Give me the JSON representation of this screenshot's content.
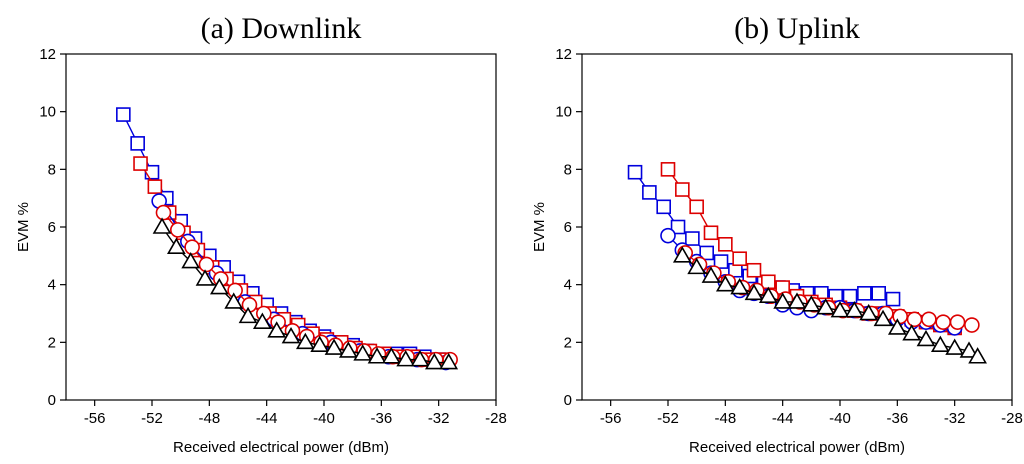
{
  "chart_data": [
    {
      "type": "line",
      "title": "(a) Downlink",
      "xlabel": "Received electrical power (dBm)",
      "ylabel": "EVM %",
      "xlim": [
        -58,
        -28
      ],
      "ylim": [
        0,
        12
      ],
      "xticks": [
        -56,
        -52,
        -48,
        -44,
        -40,
        -36,
        -32,
        -28
      ],
      "yticks": [
        0,
        2,
        4,
        6,
        8,
        10,
        12
      ],
      "grid": false,
      "series": [
        {
          "color": "#0000dd",
          "marker": "square",
          "x": [
            -54,
            -53,
            -52,
            -51,
            -50,
            -49,
            -48,
            -47,
            -46,
            -45,
            -44,
            -43,
            -42,
            -41,
            -40,
            -39,
            -38,
            -37,
            -36,
            -35,
            -34,
            -33,
            -32
          ],
          "y": [
            9.9,
            8.9,
            7.9,
            7.0,
            6.2,
            5.6,
            5.0,
            4.6,
            4.1,
            3.7,
            3.3,
            3.0,
            2.7,
            2.4,
            2.2,
            2.0,
            1.9,
            1.7,
            1.6,
            1.6,
            1.6,
            1.5,
            1.4
          ]
        },
        {
          "color": "#dd0000",
          "marker": "square",
          "x": [
            -52.8,
            -51.8,
            -50.8,
            -49.8,
            -48.8,
            -47.8,
            -46.8,
            -45.8,
            -44.8,
            -43.8,
            -42.8,
            -41.8,
            -40.8,
            -39.8,
            -38.8,
            -37.8,
            -36.8,
            -35.8,
            -34.8,
            -33.8,
            -32.8,
            -31.8
          ],
          "y": [
            8.2,
            7.4,
            6.5,
            5.8,
            5.2,
            4.6,
            4.2,
            3.8,
            3.4,
            3.0,
            2.8,
            2.6,
            2.3,
            2.1,
            2.0,
            1.8,
            1.7,
            1.6,
            1.5,
            1.5,
            1.4,
            1.4
          ]
        },
        {
          "color": "#0000dd",
          "marker": "circle",
          "x": [
            -51.5,
            -49.5,
            -47.5,
            -45.5,
            -43.5,
            -41.5,
            -39.5,
            -37.5,
            -35.5,
            -33.5,
            -31.5
          ],
          "y": [
            6.9,
            5.5,
            4.4,
            3.4,
            2.8,
            2.3,
            2.0,
            1.7,
            1.5,
            1.4,
            1.3
          ]
        },
        {
          "color": "#dd0000",
          "marker": "circle",
          "x": [
            -51.2,
            -50.2,
            -49.2,
            -48.2,
            -47.2,
            -46.2,
            -45.2,
            -44.2,
            -43.2,
            -42.2,
            -41.2,
            -40.2,
            -39.2,
            -38.2,
            -37.2,
            -36.2,
            -35.2,
            -34.2,
            -33.2,
            -32.2,
            -31.2
          ],
          "y": [
            6.5,
            5.9,
            5.3,
            4.7,
            4.2,
            3.8,
            3.3,
            3.0,
            2.7,
            2.4,
            2.2,
            2.0,
            1.9,
            1.8,
            1.7,
            1.6,
            1.5,
            1.5,
            1.4,
            1.4,
            1.4
          ]
        },
        {
          "color": "#000000",
          "marker": "triangle",
          "x": [
            -51.3,
            -50.3,
            -49.3,
            -48.3,
            -47.3,
            -46.3,
            -45.3,
            -44.3,
            -43.3,
            -42.3,
            -41.3,
            -40.3,
            -39.3,
            -38.3,
            -37.3,
            -36.3,
            -35.3,
            -34.3,
            -33.3,
            -32.3,
            -31.3
          ],
          "y": [
            6.0,
            5.3,
            4.8,
            4.2,
            3.9,
            3.4,
            2.9,
            2.7,
            2.4,
            2.2,
            2.0,
            1.9,
            1.8,
            1.7,
            1.6,
            1.5,
            1.5,
            1.4,
            1.4,
            1.3,
            1.3
          ]
        }
      ]
    },
    {
      "type": "line",
      "title": "(b) Uplink",
      "xlabel": "Received electrical power (dBm)",
      "ylabel": "EVM %",
      "xlim": [
        -58,
        -28
      ],
      "ylim": [
        0,
        12
      ],
      "xticks": [
        -56,
        -52,
        -48,
        -44,
        -40,
        -36,
        -32,
        -28
      ],
      "yticks": [
        0,
        2,
        4,
        6,
        8,
        10,
        12
      ],
      "grid": false,
      "series": [
        {
          "color": "#0000dd",
          "marker": "square",
          "x": [
            -54.3,
            -53.3,
            -52.3,
            -51.3,
            -50.3,
            -49.3,
            -48.3,
            -47.3,
            -46.3,
            -45.3,
            -44.3,
            -43.3,
            -42.3,
            -41.3,
            -40.3,
            -39.3,
            -38.3,
            -37.3,
            -36.3
          ],
          "y": [
            7.9,
            7.2,
            6.7,
            6.0,
            5.6,
            5.1,
            4.8,
            4.5,
            4.3,
            4.1,
            3.9,
            3.8,
            3.7,
            3.7,
            3.6,
            3.6,
            3.7,
            3.7,
            3.5
          ]
        },
        {
          "color": "#dd0000",
          "marker": "square",
          "x": [
            -52,
            -51,
            -50,
            -49,
            -48,
            -47,
            -46,
            -45,
            -44,
            -43,
            -42,
            -41,
            -40,
            -39,
            -38,
            -37,
            -36,
            -35,
            -34,
            -33,
            -32
          ],
          "y": [
            8.0,
            7.3,
            6.7,
            5.8,
            5.4,
            4.9,
            4.5,
            4.1,
            3.9,
            3.6,
            3.4,
            3.3,
            3.2,
            3.1,
            3.0,
            3.0,
            2.9,
            2.8,
            2.7,
            2.6,
            2.5
          ]
        },
        {
          "color": "#0000dd",
          "marker": "circle",
          "x": [
            -52,
            -51,
            -50,
            -49,
            -48,
            -47,
            -46,
            -45,
            -44,
            -43,
            -42,
            -41,
            -40,
            -39,
            -38,
            -37,
            -36,
            -35,
            -34,
            -33,
            -32
          ],
          "y": [
            5.7,
            5.2,
            4.8,
            4.4,
            4.1,
            3.8,
            3.7,
            3.6,
            3.3,
            3.2,
            3.1,
            3.2,
            3.2,
            3.1,
            3.0,
            3.0,
            2.8,
            2.7,
            2.7,
            2.6,
            2.5
          ]
        },
        {
          "color": "#dd0000",
          "marker": "circle",
          "x": [
            -50.8,
            -49.8,
            -48.8,
            -47.8,
            -46.8,
            -45.8,
            -44.8,
            -43.8,
            -42.8,
            -41.8,
            -40.8,
            -39.8,
            -38.8,
            -37.8,
            -36.8,
            -35.8,
            -34.8,
            -33.8,
            -32.8,
            -31.8,
            -30.8
          ],
          "y": [
            5.1,
            4.7,
            4.4,
            4.1,
            3.9,
            3.8,
            3.6,
            3.5,
            3.4,
            3.3,
            3.2,
            3.1,
            3.1,
            3.0,
            3.0,
            2.9,
            2.8,
            2.8,
            2.7,
            2.7,
            2.6
          ]
        },
        {
          "color": "#000000",
          "marker": "triangle",
          "x": [
            -51,
            -50,
            -49,
            -48,
            -47,
            -46,
            -45,
            -44,
            -43,
            -42,
            -41,
            -40,
            -39,
            -38,
            -37,
            -36,
            -35,
            -34,
            -33,
            -32,
            -31,
            -30.4
          ],
          "y": [
            5.0,
            4.6,
            4.3,
            4.0,
            3.9,
            3.7,
            3.6,
            3.4,
            3.4,
            3.3,
            3.2,
            3.1,
            3.1,
            3.0,
            2.8,
            2.5,
            2.3,
            2.1,
            1.9,
            1.8,
            1.7,
            1.5
          ]
        }
      ]
    }
  ]
}
